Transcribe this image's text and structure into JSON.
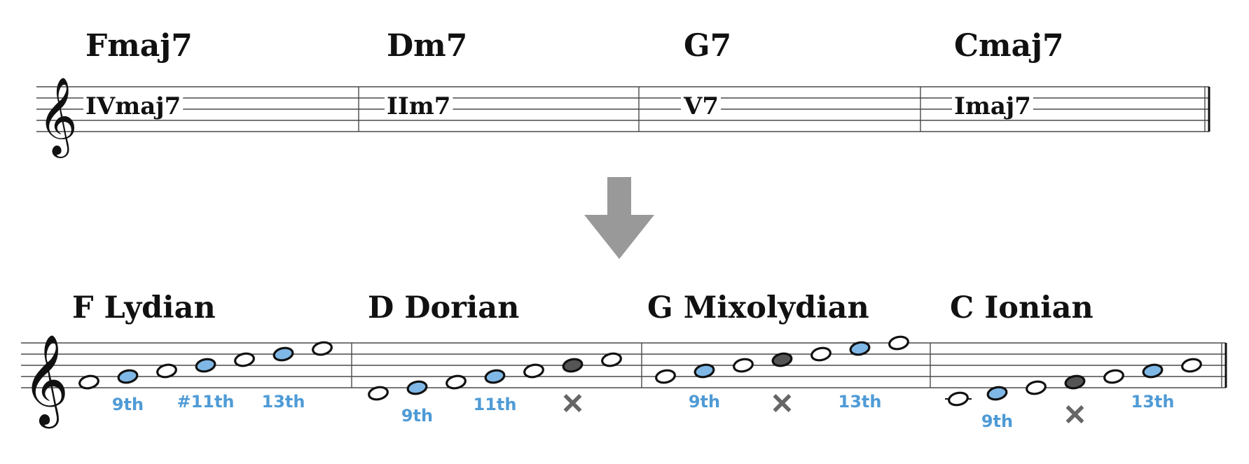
{
  "colors": {
    "ink": "#111111",
    "staff_line": "#4a4a4a",
    "tension_note": "#7fb8e6",
    "tension_label": "#4f9bd6",
    "avoid_note": "#555555",
    "avoid_mark": "#666666",
    "arrow": "#999999",
    "plain_note": "#ffffff"
  },
  "icons": {
    "clef": "treble-clef-icon",
    "arrow": "arrow-down-icon",
    "avoid": "x-mark-icon"
  },
  "top_staff": {
    "measures": [
      {
        "chord": "Fmaj7",
        "roman": "IVmaj7"
      },
      {
        "chord": "Dm7",
        "roman": "IIm7"
      },
      {
        "chord": "G7",
        "roman": "V7"
      },
      {
        "chord": "Cmaj7",
        "roman": "Imaj7"
      }
    ]
  },
  "bottom_staff": {
    "measures": [
      {
        "mode": "F Lydian",
        "notes": [
          {
            "pitch": "F4",
            "kind": "plain"
          },
          {
            "pitch": "G4",
            "kind": "tension",
            "label": "9th"
          },
          {
            "pitch": "A4",
            "kind": "plain"
          },
          {
            "pitch": "B4",
            "kind": "tension",
            "label": "#11th"
          },
          {
            "pitch": "C5",
            "kind": "plain"
          },
          {
            "pitch": "D5",
            "kind": "tension",
            "label": "13th"
          },
          {
            "pitch": "E5",
            "kind": "plain"
          }
        ]
      },
      {
        "mode": "D Dorian",
        "notes": [
          {
            "pitch": "D4",
            "kind": "plain"
          },
          {
            "pitch": "E4",
            "kind": "tension",
            "label": "9th"
          },
          {
            "pitch": "F4",
            "kind": "plain"
          },
          {
            "pitch": "G4",
            "kind": "tension",
            "label": "11th"
          },
          {
            "pitch": "A4",
            "kind": "plain"
          },
          {
            "pitch": "B4",
            "kind": "avoid"
          },
          {
            "pitch": "C5",
            "kind": "plain"
          }
        ]
      },
      {
        "mode": "G Mixolydian",
        "notes": [
          {
            "pitch": "G4",
            "kind": "plain"
          },
          {
            "pitch": "A4",
            "kind": "tension",
            "label": "9th"
          },
          {
            "pitch": "B4",
            "kind": "plain"
          },
          {
            "pitch": "C5",
            "kind": "avoid"
          },
          {
            "pitch": "D5",
            "kind": "plain"
          },
          {
            "pitch": "E5",
            "kind": "tension",
            "label": "13th"
          },
          {
            "pitch": "F5",
            "kind": "plain"
          }
        ]
      },
      {
        "mode": "C Ionian",
        "notes": [
          {
            "pitch": "C4",
            "kind": "plain"
          },
          {
            "pitch": "D4",
            "kind": "tension",
            "label": "9th"
          },
          {
            "pitch": "E4",
            "kind": "plain"
          },
          {
            "pitch": "F4",
            "kind": "avoid"
          },
          {
            "pitch": "G4",
            "kind": "plain"
          },
          {
            "pitch": "A4",
            "kind": "tension",
            "label": "13th"
          },
          {
            "pitch": "B4",
            "kind": "plain"
          }
        ]
      }
    ]
  }
}
